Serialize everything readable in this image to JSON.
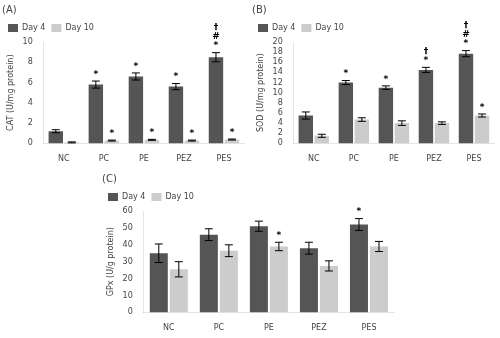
{
  "chart_data": [
    {
      "type": "bar",
      "title": "(A)",
      "ylabel": "CAT (U/mg protein)",
      "categories": [
        "NC",
        "PC",
        "PE",
        "PEZ",
        "PES"
      ],
      "series": [
        {
          "name": "Day 4",
          "color": "#555555",
          "values": [
            1.2,
            5.8,
            6.6,
            5.6,
            8.5
          ],
          "errors": [
            0.15,
            0.35,
            0.35,
            0.3,
            0.45
          ],
          "annotations": [
            null,
            [
              "*"
            ],
            [
              "*"
            ],
            [
              "*"
            ],
            [
              "†",
              "#",
              "*"
            ]
          ]
        },
        {
          "name": "Day 10",
          "color": "#cccccc",
          "values": [
            0.1,
            0.28,
            0.35,
            0.28,
            0.38
          ],
          "errors": [
            0.05,
            0.05,
            0.05,
            0.05,
            0.05
          ],
          "annotations": [
            null,
            [
              "*"
            ],
            [
              "*"
            ],
            [
              "*"
            ],
            [
              "*"
            ]
          ]
        }
      ],
      "ylim": [
        0,
        10
      ],
      "yticks": [
        0,
        2,
        4,
        6,
        8,
        10
      ],
      "grid": false,
      "legend": "upper left"
    },
    {
      "type": "bar",
      "title": "(B)",
      "ylabel": "SOD (U/mg protein)",
      "categories": [
        "NC",
        "PC",
        "PE",
        "PEZ",
        "PES"
      ],
      "series": [
        {
          "name": "Day 4",
          "color": "#555555",
          "values": [
            5.5,
            12.0,
            11.0,
            14.5,
            17.7
          ],
          "errors": [
            0.7,
            0.4,
            0.35,
            0.5,
            0.6
          ],
          "annotations": [
            null,
            [
              "*"
            ],
            [
              "*"
            ],
            [
              "†",
              "*"
            ],
            [
              "†",
              "#",
              "*"
            ]
          ]
        },
        {
          "name": "Day 10",
          "color": "#cccccc",
          "values": [
            1.5,
            4.7,
            4.0,
            4.0,
            5.5
          ],
          "errors": [
            0.3,
            0.35,
            0.45,
            0.25,
            0.3
          ],
          "annotations": [
            null,
            null,
            null,
            null,
            [
              "*"
            ]
          ]
        }
      ],
      "ylim": [
        0,
        20
      ],
      "yticks": [
        0,
        2,
        4,
        6,
        8,
        10,
        12,
        14,
        16,
        18,
        20
      ],
      "grid": false,
      "legend": "upper left"
    },
    {
      "type": "bar",
      "title": "(C)",
      "ylabel": "GPx (U/g protein)",
      "categories": [
        "NC",
        "PC",
        "PE",
        "PEZ",
        "PES"
      ],
      "series": [
        {
          "name": "Day 4",
          "color": "#555555",
          "values": [
            35.0,
            46.0,
            51.0,
            38.0,
            52.0
          ],
          "errors": [
            5.5,
            3.5,
            3.0,
            3.5,
            3.5
          ],
          "annotations": [
            null,
            null,
            null,
            null,
            [
              "*"
            ]
          ]
        },
        {
          "name": "Day 10",
          "color": "#cccccc",
          "values": [
            25.5,
            36.5,
            39.0,
            27.5,
            39.0
          ],
          "errors": [
            4.5,
            3.5,
            2.5,
            3.0,
            3.0
          ],
          "annotations": [
            null,
            null,
            [
              "*"
            ],
            null,
            null
          ]
        }
      ],
      "ylim": [
        0,
        60
      ],
      "yticks": [
        0,
        10,
        20,
        30,
        40,
        50,
        60
      ],
      "grid": false,
      "legend": "upper left"
    }
  ]
}
